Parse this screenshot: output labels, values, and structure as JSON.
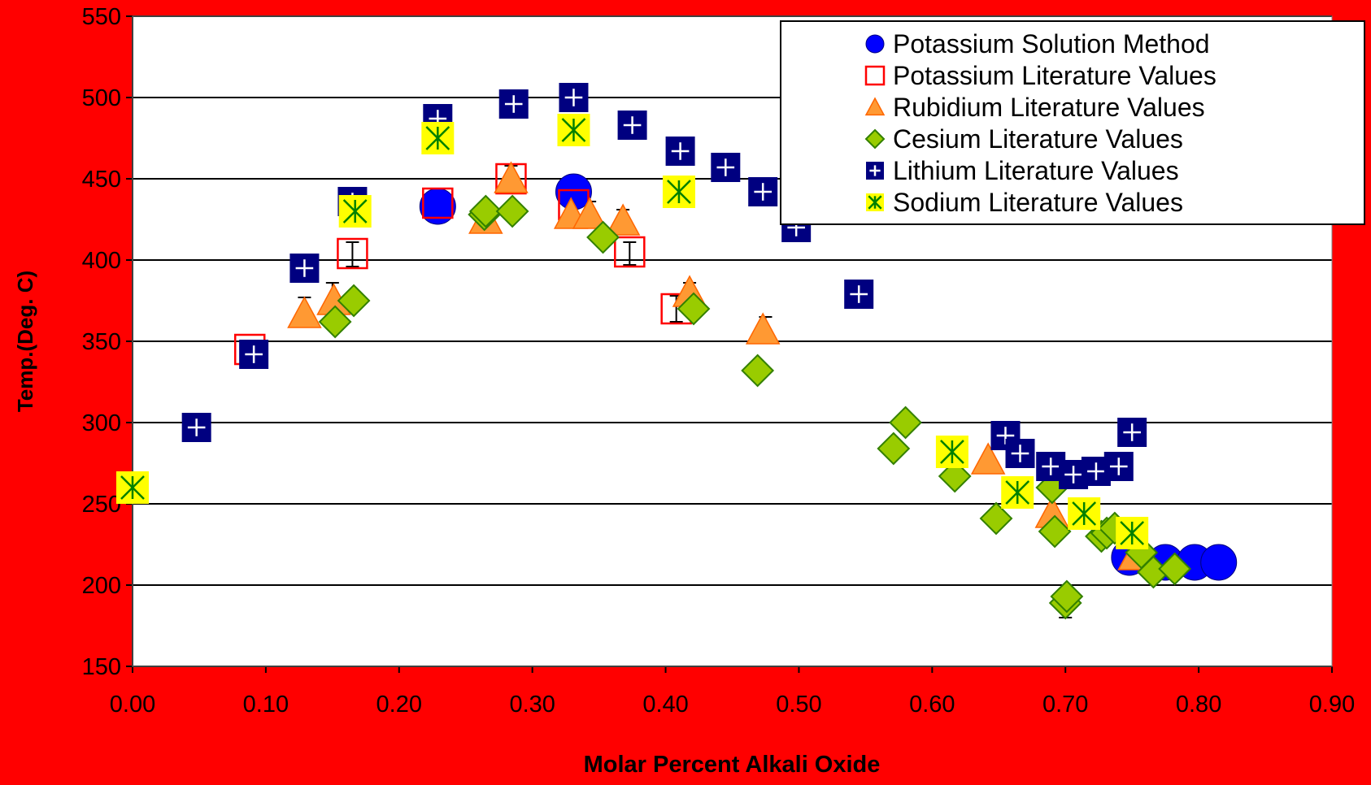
{
  "chart_data": {
    "type": "scatter",
    "title": "",
    "xlabel": "Molar Percent Alkali Oxide",
    "ylabel": "Temp.(Deg. C)",
    "xlim": [
      0.0,
      0.9
    ],
    "ylim": [
      150,
      550
    ],
    "x_ticks": [
      0.0,
      0.1,
      0.2,
      0.3,
      0.4,
      0.5,
      0.6,
      0.7,
      0.8,
      0.9
    ],
    "x_tick_labels": [
      "0.00",
      "0.10",
      "0.20",
      "0.30",
      "0.40",
      "0.50",
      "0.60",
      "0.70",
      "0.80",
      "0.90"
    ],
    "y_ticks": [
      150,
      200,
      250,
      300,
      350,
      400,
      450,
      500,
      550
    ],
    "y_tick_labels": [
      "150",
      "200",
      "250",
      "300",
      "350",
      "400",
      "450",
      "500",
      "550"
    ],
    "grid": "horizontal",
    "legend_position": "top-right",
    "background": "#FF0000",
    "plot_background": "#FFFFFF",
    "series": [
      {
        "name": "Potassium Solution Method",
        "marker": "circle",
        "color": "#0000FF",
        "points": [
          [
            0.229,
            433
          ],
          [
            0.331,
            442
          ],
          [
            0.748,
            217
          ],
          [
            0.775,
            214
          ],
          [
            0.797,
            214
          ],
          [
            0.815,
            214
          ]
        ]
      },
      {
        "name": "Potassium Literature Values",
        "marker": "square-open",
        "color": "#FF0000",
        "points": [
          [
            0.088,
            345
          ],
          [
            0.165,
            404
          ],
          [
            0.229,
            435
          ],
          [
            0.284,
            450
          ],
          [
            0.331,
            434
          ],
          [
            0.373,
            405
          ],
          [
            0.408,
            370
          ]
        ]
      },
      {
        "name": "Rubidium Literature Values",
        "marker": "triangle",
        "color": "#FF9933",
        "points": [
          [
            0.129,
            367
          ],
          [
            0.151,
            375
          ],
          [
            0.265,
            425
          ],
          [
            0.284,
            450
          ],
          [
            0.329,
            428
          ],
          [
            0.343,
            428
          ],
          [
            0.368,
            424
          ],
          [
            0.418,
            380
          ],
          [
            0.473,
            357
          ],
          [
            0.642,
            277
          ],
          [
            0.69,
            244
          ],
          [
            0.752,
            218
          ]
        ]
      },
      {
        "name": "Cesium Literature Values",
        "marker": "diamond",
        "color": "#99CC00",
        "points": [
          [
            0.152,
            362
          ],
          [
            0.166,
            375
          ],
          [
            0.264,
            428
          ],
          [
            0.265,
            430
          ],
          [
            0.285,
            430
          ],
          [
            0.353,
            414
          ],
          [
            0.421,
            370
          ],
          [
            0.469,
            332
          ],
          [
            0.571,
            284
          ],
          [
            0.58,
            300
          ],
          [
            0.617,
            267
          ],
          [
            0.648,
            241
          ],
          [
            0.69,
            260
          ],
          [
            0.692,
            233
          ],
          [
            0.7,
            189
          ],
          [
            0.701,
            193
          ],
          [
            0.727,
            230
          ],
          [
            0.731,
            232
          ],
          [
            0.737,
            235
          ],
          [
            0.757,
            220
          ],
          [
            0.766,
            208
          ],
          [
            0.782,
            210
          ]
        ]
      },
      {
        "name": "Lithium Literature Values",
        "marker": "square-plus",
        "color": "#000080",
        "points": [
          [
            0.048,
            297
          ],
          [
            0.091,
            342
          ],
          [
            0.129,
            395
          ],
          [
            0.165,
            436
          ],
          [
            0.229,
            487
          ],
          [
            0.286,
            496
          ],
          [
            0.331,
            500
          ],
          [
            0.375,
            483
          ],
          [
            0.411,
            467
          ],
          [
            0.445,
            457
          ],
          [
            0.473,
            442
          ],
          [
            0.498,
            420
          ],
          [
            0.545,
            379
          ],
          [
            0.655,
            292
          ],
          [
            0.666,
            281
          ],
          [
            0.689,
            273
          ],
          [
            0.706,
            268
          ],
          [
            0.723,
            270
          ],
          [
            0.74,
            273
          ],
          [
            0.75,
            294
          ]
        ]
      },
      {
        "name": "Sodium Literature Values",
        "marker": "asterisk",
        "color": "#FFFF00",
        "points": [
          [
            0.0,
            260
          ],
          [
            0.167,
            430
          ],
          [
            0.229,
            475
          ],
          [
            0.331,
            480
          ],
          [
            0.41,
            442
          ],
          [
            0.615,
            282
          ],
          [
            0.664,
            257
          ],
          [
            0.714,
            244
          ],
          [
            0.75,
            232
          ]
        ]
      }
    ],
    "error_bars": [
      {
        "x": 0.165,
        "y_low": 396,
        "y_high": 411
      },
      {
        "x": 0.373,
        "y_low": 397,
        "y_high": 411
      },
      {
        "x": 0.408,
        "y_low": 362,
        "y_high": 378
      },
      {
        "x": 0.418,
        "y_low": 368,
        "y_high": 386
      },
      {
        "x": 0.15,
        "y_low": 365,
        "y_high": 386
      },
      {
        "x": 0.129,
        "y_low": 362,
        "y_high": 377
      },
      {
        "x": 0.343,
        "y_low": 421,
        "y_high": 436
      },
      {
        "x": 0.368,
        "y_low": 417,
        "y_high": 431
      },
      {
        "x": 0.284,
        "y_low": 441,
        "y_high": 458
      },
      {
        "x": 0.475,
        "y_low": 350,
        "y_high": 365
      },
      {
        "x": 0.7,
        "y_low": 180,
        "y_high": 200
      }
    ]
  }
}
